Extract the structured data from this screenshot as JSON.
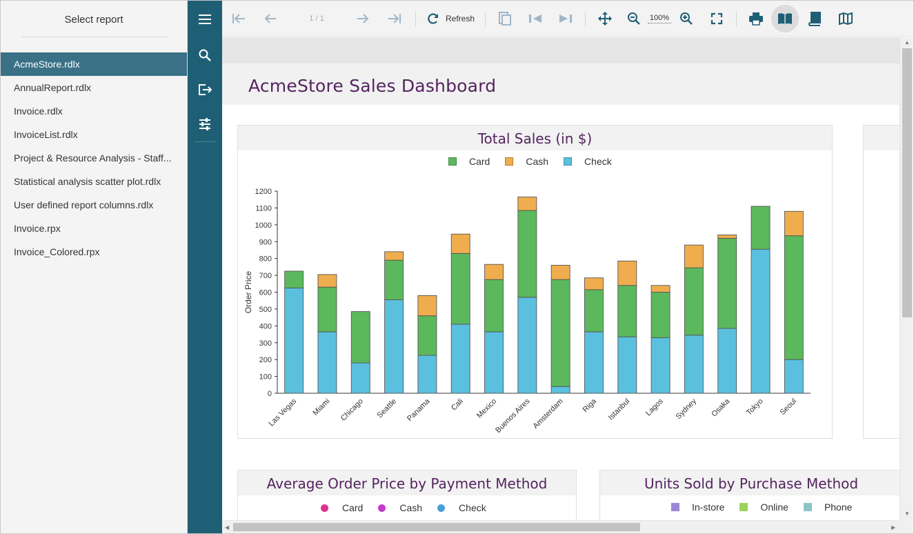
{
  "report_panel": {
    "title": "Select report",
    "items": [
      {
        "label": "AcmeStore.rdlx",
        "active": true
      },
      {
        "label": "AnnualReport.rdlx",
        "active": false
      },
      {
        "label": "Invoice.rdlx",
        "active": false
      },
      {
        "label": "InvoiceList.rdlx",
        "active": false
      },
      {
        "label": "Project & Resource Analysis - Staff...",
        "active": false
      },
      {
        "label": "Statistical analysis scatter plot.rdlx",
        "active": false
      },
      {
        "label": "User defined report columns.rdlx",
        "active": false
      },
      {
        "label": "Invoice.rpx",
        "active": false
      },
      {
        "label": "Invoice_Colored.rpx",
        "active": false
      }
    ]
  },
  "nav_rail": {
    "icons": [
      "menu-icon",
      "search-icon",
      "export-icon",
      "parameters-icon"
    ]
  },
  "toolbar": {
    "page_indicator": "1 / 1",
    "refresh_label": "Refresh",
    "zoom_level": "100%",
    "selected_tool": "galley-mode-icon"
  },
  "dashboard": {
    "title": "AcmeStore Sales Dashboard"
  },
  "colors": {
    "card": "#5cb85c",
    "cash": "#f0ad4e",
    "check": "#5bc0de",
    "title_purple": "#54245e",
    "accent": "#1f5f76"
  },
  "chart_data": [
    {
      "type": "bar",
      "stacked": true,
      "title": "Total Sales (in $)",
      "ylabel": "Order Price",
      "xlabel": "",
      "ylim": [
        0,
        1200
      ],
      "yticks": [
        0,
        100,
        200,
        300,
        400,
        500,
        600,
        700,
        800,
        900,
        1000,
        1100,
        1200
      ],
      "legend_position": "top-center",
      "categories": [
        "Las Vegas",
        "Miami",
        "Chicago",
        "Seattle",
        "Panama",
        "Cali",
        "Mexico",
        "Buenos Aires",
        "Amsterdam",
        "Riga",
        "Istanbul",
        "Lagos",
        "Sydney",
        "Osaka",
        "Tokyo",
        "Seoul"
      ],
      "series": [
        {
          "name": "Check",
          "color": "#5bc0de",
          "values": [
            625,
            365,
            180,
            555,
            225,
            410,
            365,
            570,
            40,
            365,
            335,
            330,
            345,
            385,
            855,
            200
          ]
        },
        {
          "name": "Card",
          "color": "#5cb85c",
          "values": [
            100,
            265,
            305,
            235,
            235,
            420,
            310,
            515,
            635,
            250,
            305,
            270,
            400,
            535,
            255,
            735
          ]
        },
        {
          "name": "Cash",
          "color": "#f0ad4e",
          "values": [
            0,
            75,
            0,
            50,
            120,
            115,
            90,
            80,
            85,
            70,
            145,
            40,
            135,
            20,
            0,
            145
          ]
        }
      ]
    },
    {
      "type": "scatter",
      "title": "Average Order Price by Payment Method",
      "legend_position": "top-center",
      "series": [
        {
          "name": "Card",
          "color": "#e0308e"
        },
        {
          "name": "Cash",
          "color": "#c23ccc"
        },
        {
          "name": "Check",
          "color": "#4a9fd8"
        }
      ]
    },
    {
      "type": "bar",
      "title": "Units Sold by Purchase Method",
      "legend_position": "top-center",
      "series": [
        {
          "name": "In-store",
          "color": "#9b87d6"
        },
        {
          "name": "Online",
          "color": "#9ad45e"
        },
        {
          "name": "Phone",
          "color": "#8cc5c8"
        }
      ]
    }
  ]
}
